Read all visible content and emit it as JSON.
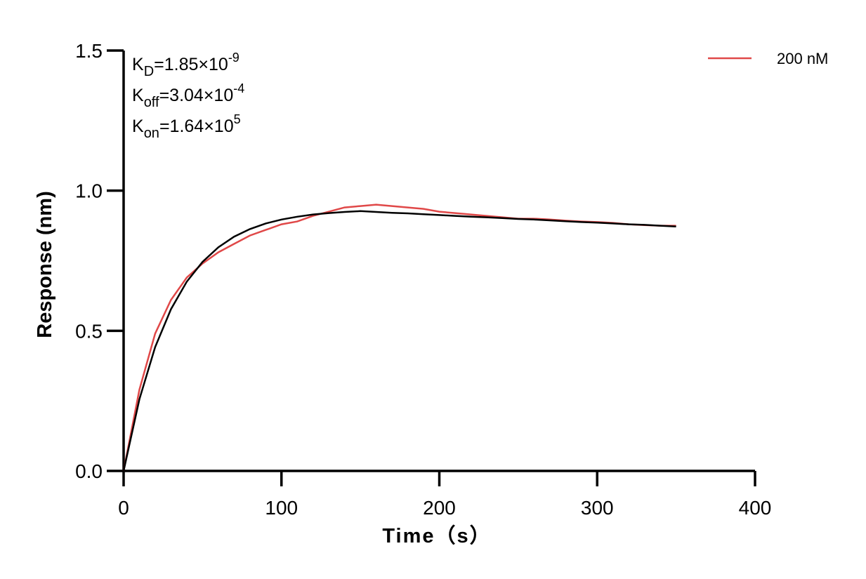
{
  "chart_data": {
    "type": "line",
    "xlabel": "Time（s）",
    "ylabel": "Response (nm)",
    "annotations": [
      {
        "base": "K",
        "sub": "D",
        "text": "=1.85×10",
        "sup": "-9"
      },
      {
        "base": "K",
        "sub": "off",
        "text": "=3.04×10",
        "sup": "-4"
      },
      {
        "base": "K",
        "sub": "on",
        "text": "=1.64×10",
        "sup": "5"
      }
    ],
    "x": [
      0,
      10,
      20,
      30,
      40,
      50,
      60,
      70,
      80,
      90,
      100,
      110,
      120,
      130,
      140,
      150,
      160,
      170,
      180,
      190,
      200,
      210,
      220,
      230,
      240,
      250,
      260,
      270,
      280,
      290,
      300,
      310,
      320,
      330,
      340,
      350
    ],
    "series": [
      {
        "name": "200 nM",
        "color": "#e04848",
        "values": [
          0,
          0.29,
          0.49,
          0.61,
          0.69,
          0.74,
          0.78,
          0.81,
          0.84,
          0.86,
          0.88,
          0.89,
          0.91,
          0.925,
          0.94,
          0.945,
          0.95,
          0.945,
          0.94,
          0.935,
          0.925,
          0.92,
          0.915,
          0.91,
          0.905,
          0.9,
          0.9,
          0.897,
          0.893,
          0.89,
          0.888,
          0.885,
          0.88,
          0.877,
          0.875,
          0.875
        ]
      },
      {
        "color": "#000000",
        "values": [
          0,
          0.256,
          0.442,
          0.577,
          0.675,
          0.746,
          0.798,
          0.836,
          0.863,
          0.883,
          0.897,
          0.907,
          0.915,
          0.92,
          0.924,
          0.927,
          0.924,
          0.921,
          0.919,
          0.916,
          0.913,
          0.91,
          0.907,
          0.905,
          0.902,
          0.899,
          0.897,
          0.894,
          0.891,
          0.888,
          0.886,
          0.883,
          0.88,
          0.878,
          0.875,
          0.872
        ]
      }
    ],
    "xlim": [
      0,
      400
    ],
    "xticks": [
      0,
      100,
      200,
      300,
      400
    ],
    "ylim": [
      0,
      1.5
    ],
    "yticks": [
      {
        "value": 0,
        "label": "0.0"
      },
      0.5,
      {
        "value": 1,
        "label": "1.0"
      },
      1.5
    ],
    "legend": "top-right"
  }
}
